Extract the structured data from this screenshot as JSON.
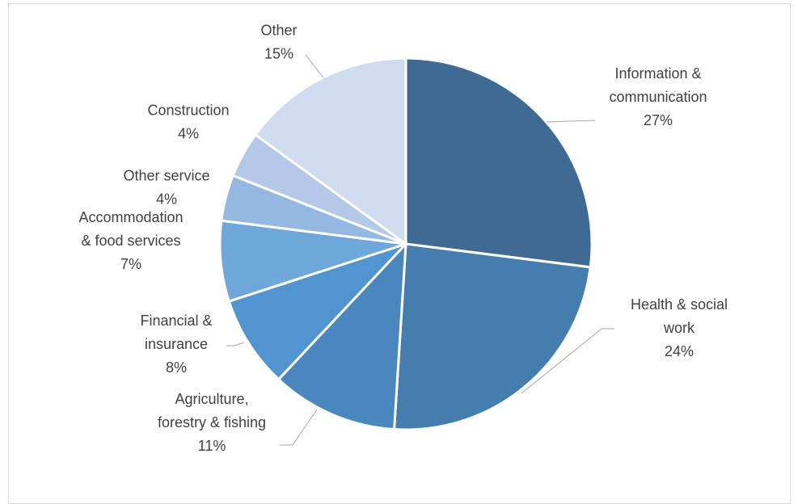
{
  "colors": {
    "slice_palette": [
      "#3f6a94",
      "#467daf",
      "#4a87bf",
      "#5195d0",
      "#6ea7da",
      "#95b8e0",
      "#b3c9e7",
      "#cfdbef"
    ],
    "leader_line": "#a6a6a6",
    "label_text": "#404040"
  },
  "chart_data": {
    "type": "pie",
    "title": "",
    "slices": [
      {
        "label_lines": [
          "Information &",
          "communication"
        ],
        "value": 27,
        "value_label": "27%"
      },
      {
        "label_lines": [
          "Health & social",
          "work"
        ],
        "value": 24,
        "value_label": "24%"
      },
      {
        "label_lines": [
          "Agriculture,",
          "forestry & fishing"
        ],
        "value": 11,
        "value_label": "11%"
      },
      {
        "label_lines": [
          "Financial &",
          "insurance"
        ],
        "value": 8,
        "value_label": "8%"
      },
      {
        "label_lines": [
          "Accommodation",
          "& food services"
        ],
        "value": 7,
        "value_label": "7%"
      },
      {
        "label_lines": [
          "Other service"
        ],
        "value": 4,
        "value_label": "4%"
      },
      {
        "label_lines": [
          "Construction"
        ],
        "value": 4,
        "value_label": "4%"
      },
      {
        "label_lines": [
          "Other"
        ],
        "value": 15,
        "value_label": "15%"
      }
    ],
    "start_angle": "12 o'clock",
    "direction": "clockwise",
    "legend": "none"
  }
}
